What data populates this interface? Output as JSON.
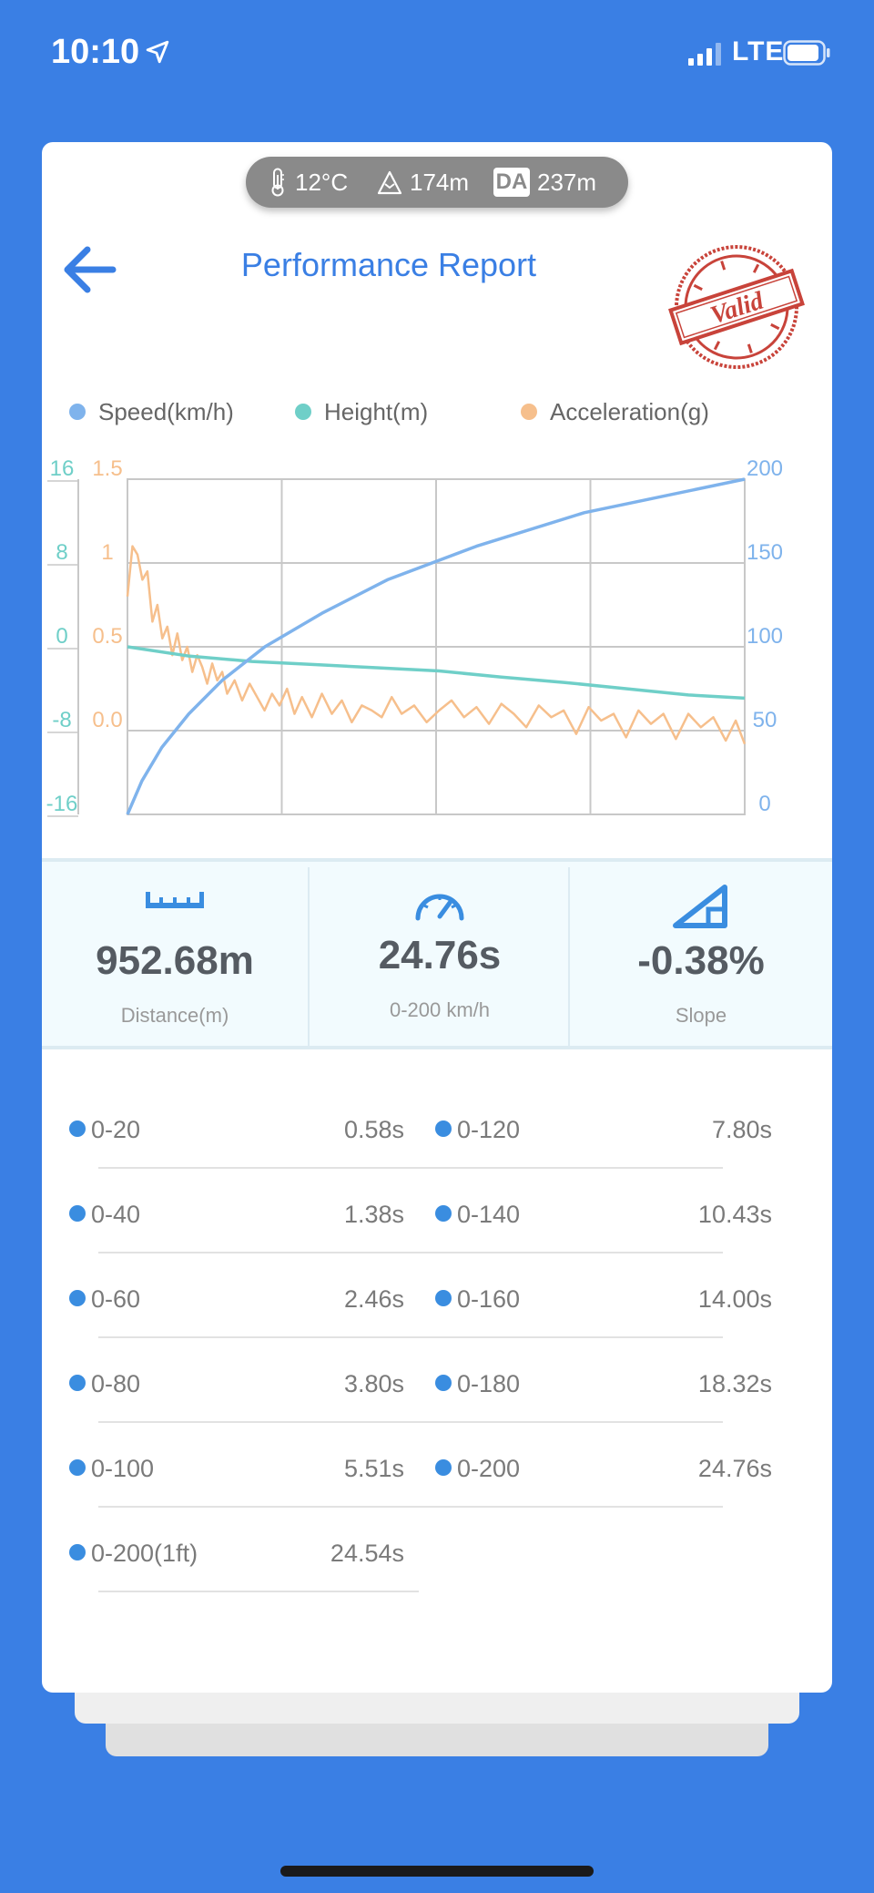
{
  "status_bar": {
    "time": "10:10",
    "network": "LTE"
  },
  "weather": {
    "temperature": "12°C",
    "altitude": "174m",
    "da_label": "DA",
    "density_altitude": "237m"
  },
  "header": {
    "title": "Performance Report",
    "stamp_text": "Valid"
  },
  "colors": {
    "speed": "#7fb3ec",
    "height": "#6fcfc8",
    "acceleration": "#f6bf8c",
    "accent": "#3a7fe4"
  },
  "chart_data": {
    "type": "line",
    "legend": [
      "Speed(km/h)",
      "Height(m)",
      "Acceleration(g)"
    ],
    "x_range": [
      0,
      24.76
    ],
    "axes": {
      "height_ticks": [
        "16",
        "8",
        "0",
        "-8",
        "-16"
      ],
      "height_range": [
        -16,
        16
      ],
      "accel_ticks": [
        "1.5",
        "1",
        "0.5",
        "0.0"
      ],
      "accel_range": [
        -0.5,
        1.5
      ],
      "speed_ticks": [
        "200",
        "150",
        "100",
        "50",
        "0"
      ],
      "speed_range": [
        0,
        200
      ]
    },
    "grid": true,
    "series": [
      {
        "name": "Speed(km/h)",
        "axis": "speed",
        "x": [
          0,
          0.58,
          1.38,
          2.46,
          3.8,
          5.51,
          7.8,
          10.43,
          14.0,
          18.32,
          24.76
        ],
        "y": [
          0,
          20,
          40,
          60,
          80,
          100,
          120,
          140,
          160,
          180,
          200
        ]
      },
      {
        "name": "Height(m)",
        "axis": "height",
        "x": [
          0,
          2.5,
          5,
          7.5,
          10,
          12.5,
          15,
          17.5,
          20,
          22.5,
          24.76
        ],
        "y": [
          0,
          -0.9,
          -1.4,
          -1.7,
          -2.0,
          -2.3,
          -2.9,
          -3.4,
          -4.0,
          -4.6,
          -4.9
        ]
      },
      {
        "name": "Acceleration(g)",
        "axis": "accel",
        "x": [
          0,
          0.2,
          0.4,
          0.6,
          0.8,
          1.0,
          1.2,
          1.4,
          1.6,
          1.8,
          2.0,
          2.2,
          2.4,
          2.6,
          2.8,
          3.0,
          3.2,
          3.4,
          3.6,
          3.8,
          4.0,
          4.3,
          4.6,
          4.9,
          5.2,
          5.5,
          5.8,
          6.1,
          6.4,
          6.7,
          7.0,
          7.4,
          7.8,
          8.2,
          8.6,
          9.0,
          9.4,
          9.8,
          10.2,
          10.6,
          11.0,
          11.5,
          12.0,
          12.5,
          13.0,
          13.5,
          14.0,
          14.5,
          15.0,
          15.5,
          16.0,
          16.5,
          17.0,
          17.5,
          18.0,
          18.5,
          19.0,
          19.5,
          20.0,
          20.5,
          21.0,
          21.5,
          22.0,
          22.5,
          23.0,
          23.5,
          24.0,
          24.4,
          24.76
        ],
        "y": [
          0.8,
          1.1,
          1.05,
          0.9,
          0.95,
          0.65,
          0.75,
          0.55,
          0.62,
          0.45,
          0.58,
          0.42,
          0.5,
          0.35,
          0.45,
          0.38,
          0.28,
          0.4,
          0.3,
          0.35,
          0.22,
          0.3,
          0.18,
          0.28,
          0.2,
          0.12,
          0.22,
          0.15,
          0.25,
          0.1,
          0.2,
          0.08,
          0.22,
          0.1,
          0.18,
          0.05,
          0.15,
          0.12,
          0.08,
          0.2,
          0.1,
          0.15,
          0.05,
          0.12,
          0.18,
          0.08,
          0.14,
          0.04,
          0.16,
          0.1,
          0.02,
          0.15,
          0.08,
          0.12,
          -0.02,
          0.14,
          0.06,
          0.1,
          -0.04,
          0.12,
          0.04,
          0.1,
          -0.05,
          0.1,
          0.02,
          0.08,
          -0.06,
          0.06,
          -0.08
        ]
      }
    ]
  },
  "metrics": [
    {
      "value": "952.68m",
      "label": "Distance(m)"
    },
    {
      "value": "24.76s",
      "label": "0-200 km/h"
    },
    {
      "value": "-0.38%",
      "label": "Slope"
    }
  ],
  "splits": [
    {
      "label": "0-20",
      "time": "0.58s"
    },
    {
      "label": "0-120",
      "time": "7.80s"
    },
    {
      "label": "0-40",
      "time": "1.38s"
    },
    {
      "label": "0-140",
      "time": "10.43s"
    },
    {
      "label": "0-60",
      "time": "2.46s"
    },
    {
      "label": "0-160",
      "time": "14.00s"
    },
    {
      "label": "0-80",
      "time": "3.80s"
    },
    {
      "label": "0-180",
      "time": "18.32s"
    },
    {
      "label": "0-100",
      "time": "5.51s"
    },
    {
      "label": "0-200",
      "time": "24.76s"
    },
    {
      "label": "0-200(1ft)",
      "time": "24.54s"
    }
  ]
}
